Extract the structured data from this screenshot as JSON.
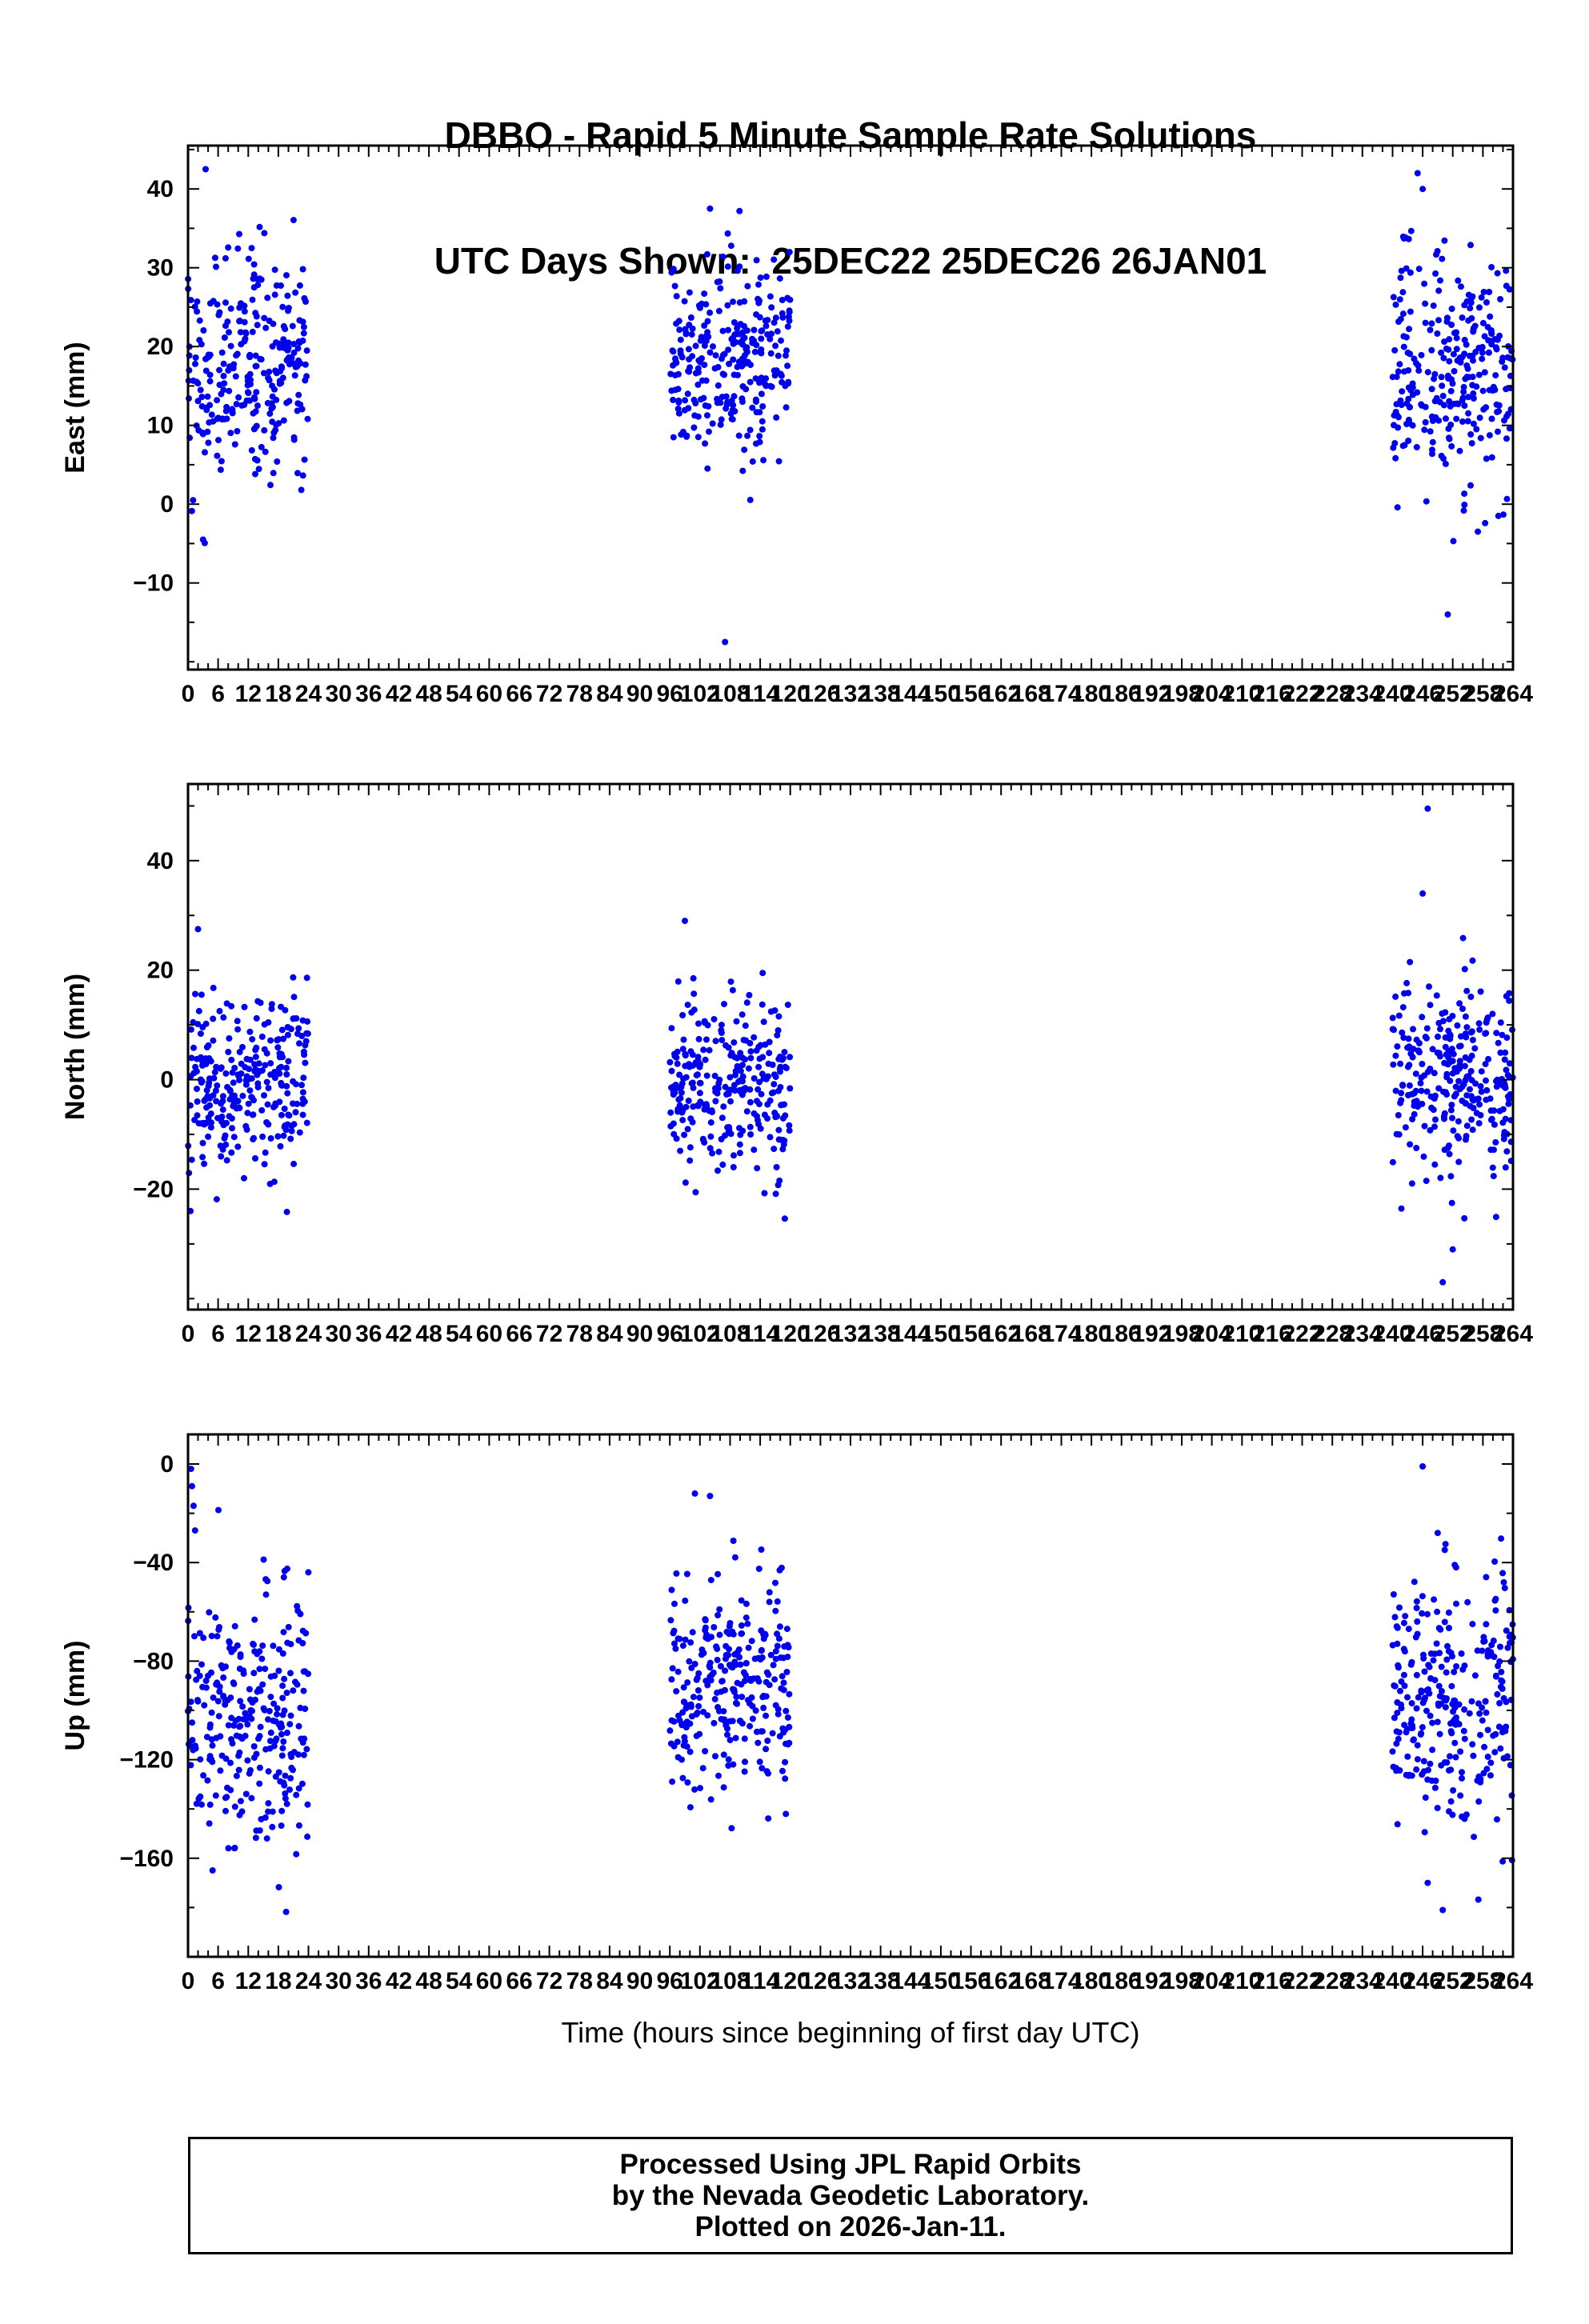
{
  "title": {
    "line1": "DBBO - Rapid 5 Minute Sample Rate Solutions",
    "line2": "UTC Days Shown:  25DEC22 25DEC26 26JAN01"
  },
  "footer": {
    "line1": "Processed Using JPL Rapid Orbits",
    "line2": "by the Nevada Geodetic Laboratory.",
    "line3": "Plotted on 2026-Jan-11."
  },
  "chart_data": {
    "type": "scatter",
    "station": "DBBO",
    "title": "DBBO - Rapid 5 Minute Sample Rate Solutions",
    "subtitle": "UTC Days Shown:  25DEC22 25DEC26 26JAN01",
    "xlabel": "Time (hours since beginning of first day UTC)",
    "days": [
      "25DEC22",
      "25DEC26",
      "26JAN01"
    ],
    "x_range": [
      0,
      264
    ],
    "x_major_tick": 6,
    "x_minor_tick": 2,
    "x_tick_labels": [
      0,
      6,
      12,
      18,
      24,
      30,
      36,
      42,
      48,
      54,
      60,
      66,
      72,
      78,
      84,
      90,
      96,
      102,
      108,
      114,
      120,
      126,
      132,
      138,
      144,
      150,
      156,
      162,
      168,
      174,
      180,
      186,
      192,
      198,
      204,
      210,
      216,
      222,
      228,
      234,
      240,
      246,
      252,
      258,
      264
    ],
    "point_color": "#0000EE",
    "point_radius": 4,
    "grid": false,
    "legend": "none",
    "panels": [
      {
        "id": "east",
        "ylabel": "East (mm)",
        "ylim": [
          -21,
          45.5
        ],
        "yticks": [
          -10,
          0,
          10,
          20,
          30,
          40
        ],
        "y_minor_tick": 5,
        "seed": 7,
        "clusters": [
          {
            "x0": 0,
            "x1": 24,
            "n": 280,
            "mean": 17.5,
            "std": 7.0,
            "ymin": -5,
            "ymax": 43
          },
          {
            "x0": 96,
            "x1": 120,
            "n": 280,
            "mean": 19.0,
            "std": 6.5,
            "ymin": -1,
            "ymax": 38
          },
          {
            "x0": 240,
            "x1": 264,
            "n": 280,
            "mean": 17.0,
            "std": 8.0,
            "ymin": -6,
            "ymax": 43
          }
        ],
        "outliers": [
          [
            3.5,
            42.5
          ],
          [
            3,
            -4.5
          ],
          [
            1,
            0.5
          ],
          [
            104,
            37.5
          ],
          [
            107,
            -17.5
          ],
          [
            245,
            42
          ],
          [
            246,
            40
          ],
          [
            251,
            -14
          ],
          [
            257,
            -3.5
          ]
        ]
      },
      {
        "id": "north",
        "ylabel": "North (mm)",
        "ylim": [
          -42,
          54
        ],
        "yticks": [
          -20,
          0,
          20,
          40
        ],
        "y_minor_tick": 10,
        "seed": 13,
        "clusters": [
          {
            "x0": 0,
            "x1": 24,
            "n": 280,
            "mean": -1.0,
            "std": 8.0,
            "ymin": -25,
            "ymax": 28
          },
          {
            "x0": 96,
            "x1": 120,
            "n": 280,
            "mean": -1.0,
            "std": 8.0,
            "ymin": -26,
            "ymax": 29
          },
          {
            "x0": 240,
            "x1": 264,
            "n": 280,
            "mean": 0.0,
            "std": 9.0,
            "ymin": -31,
            "ymax": 34
          }
        ],
        "outliers": [
          [
            0.5,
            -24
          ],
          [
            2,
            27.5
          ],
          [
            99,
            29
          ],
          [
            247,
            49.5
          ],
          [
            246,
            34
          ],
          [
            250,
            -37
          ],
          [
            252,
            -31
          ]
        ]
      },
      {
        "id": "up",
        "ylabel": "Up (mm)",
        "ylim": [
          -200,
          12
        ],
        "yticks": [
          -160,
          -120,
          -80,
          -40,
          0
        ],
        "y_minor_tick": 20,
        "seed": 21,
        "clusters": [
          {
            "x0": 0,
            "x1": 24,
            "n": 280,
            "mean": -100,
            "std": 28,
            "ymin": -185,
            "ymax": -15
          },
          {
            "x0": 96,
            "x1": 120,
            "n": 280,
            "mean": -88,
            "std": 22,
            "ymin": -152,
            "ymax": -12
          },
          {
            "x0": 240,
            "x1": 264,
            "n": 280,
            "mean": -95,
            "std": 25,
            "ymin": -182,
            "ymax": -28
          }
        ],
        "outliers": [
          [
            0.6,
            -2
          ],
          [
            0.8,
            -9
          ],
          [
            1.1,
            -17
          ],
          [
            1.4,
            -27
          ],
          [
            101,
            -12
          ],
          [
            104,
            -13
          ],
          [
            246,
            -1
          ],
          [
            249,
            -28
          ],
          [
            247,
            -170
          ],
          [
            250,
            -181
          ]
        ]
      }
    ]
  }
}
